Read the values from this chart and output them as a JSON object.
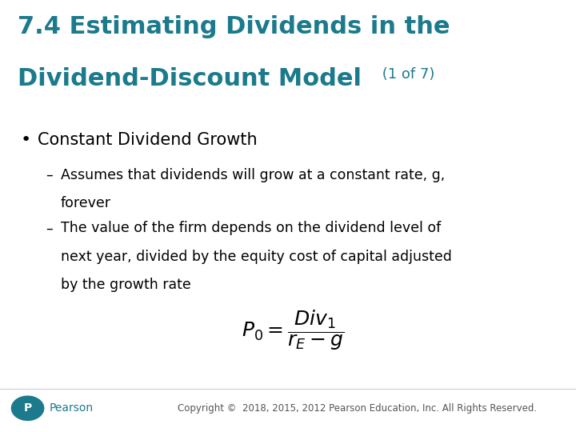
{
  "background_color": "#ffffff",
  "title_line1": "7.4 Estimating Dividends in the",
  "title_line2": "Dividend-Discount Model",
  "title_suffix": " (1 of 7)",
  "title_color": "#1b7a8c",
  "title_fontsize": 22,
  "title_suffix_fontsize": 13,
  "bullet_color": "#000000",
  "bullet_text": "Constant Dividend Growth",
  "bullet_fontsize": 15,
  "sub_bullet1_line1": "Assumes that dividends will grow at a constant rate, g,",
  "sub_bullet1_line2": "forever",
  "sub_bullet2_line1": "The value of the firm depends on the dividend level of",
  "sub_bullet2_line2": "next year, divided by the equity cost of capital adjusted",
  "sub_bullet2_line3": "by the growth rate",
  "sub_bullet_fontsize": 12.5,
  "formula_fontsize": 18,
  "footer_text": "Copyright ©  2018, 2015, 2012 Pearson Education, Inc. All Rights Reserved.",
  "footer_fontsize": 8.5,
  "footer_color": "#555555",
  "pearson_color": "#1b7a8c"
}
